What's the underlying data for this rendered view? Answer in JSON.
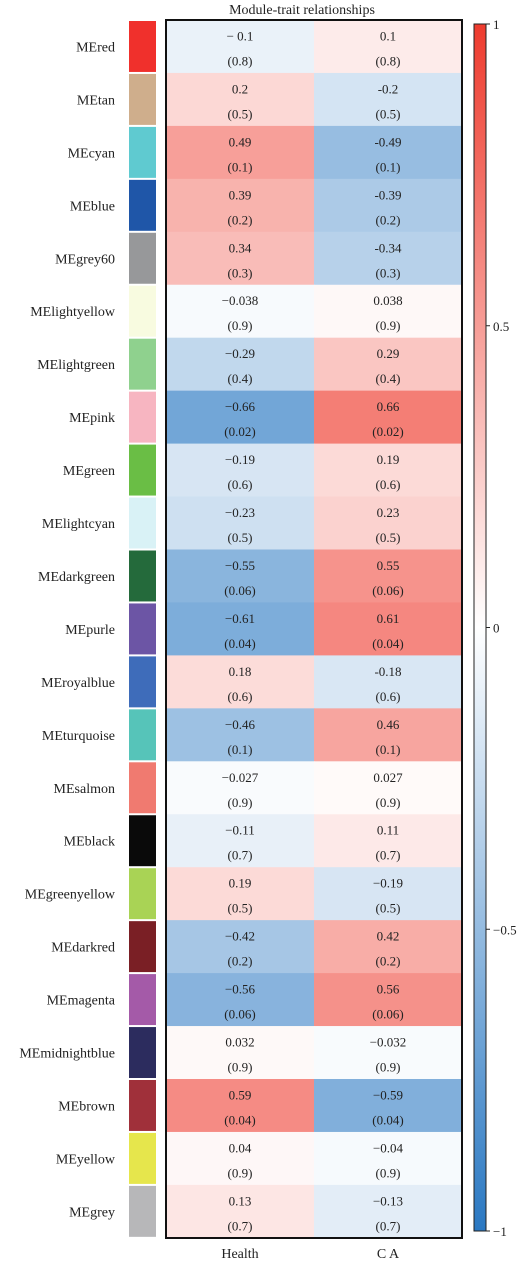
{
  "chart_data": {
    "type": "heatmap",
    "title": "Module-trait relationships",
    "columns": [
      "Health",
      "C A"
    ],
    "rows": [
      {
        "name": "MEred",
        "color": "#f0302c",
        "values": [
          "− 0.1",
          "0.1"
        ],
        "pvalues": [
          "(0.8)",
          "(0.8)"
        ],
        "corr": [
          -0.1,
          0.1
        ]
      },
      {
        "name": "MEtan",
        "color": "#cfae8c",
        "values": [
          "0.2",
          "-0.2"
        ],
        "pvalues": [
          "(0.5)",
          "(0.5)"
        ],
        "corr": [
          0.2,
          -0.2
        ]
      },
      {
        "name": "MEcyan",
        "color": "#5fcad0",
        "values": [
          "0.49",
          "-0.49"
        ],
        "pvalues": [
          "(0.1)",
          "(0.1)"
        ],
        "corr": [
          0.49,
          -0.49
        ]
      },
      {
        "name": "MEblue",
        "color": "#1f56a8",
        "values": [
          "0.39",
          "-0.39"
        ],
        "pvalues": [
          "(0.2)",
          "(0.2)"
        ],
        "corr": [
          0.39,
          -0.39
        ]
      },
      {
        "name": "MEgrey60",
        "color": "#97989a",
        "values": [
          "0.34",
          "-0.34"
        ],
        "pvalues": [
          "(0.3)",
          "(0.3)"
        ],
        "corr": [
          0.34,
          -0.34
        ]
      },
      {
        "name": "MElightyellow",
        "color": "#f8fbe0",
        "values": [
          "−0.038",
          "0.038"
        ],
        "pvalues": [
          "(0.9)",
          "(0.9)"
        ],
        "corr": [
          -0.038,
          0.038
        ]
      },
      {
        "name": "MElightgreen",
        "color": "#8fd18e",
        "values": [
          "−0.29",
          "0.29"
        ],
        "pvalues": [
          "(0.4)",
          "(0.4)"
        ],
        "corr": [
          -0.29,
          0.29
        ]
      },
      {
        "name": "MEpink",
        "color": "#f7b5c1",
        "values": [
          "−0.66",
          "0.66"
        ],
        "pvalues": [
          "(0.02)",
          "(0.02)"
        ],
        "corr": [
          -0.66,
          0.66
        ]
      },
      {
        "name": "MEgreen",
        "color": "#6abe45",
        "values": [
          "−0.19",
          "0.19"
        ],
        "pvalues": [
          "(0.6)",
          "(0.6)"
        ],
        "corr": [
          -0.19,
          0.19
        ]
      },
      {
        "name": "MElightcyan",
        "color": "#d9f2f6",
        "values": [
          "−0.23",
          "0.23"
        ],
        "pvalues": [
          "(0.5)",
          "(0.5)"
        ],
        "corr": [
          -0.23,
          0.23
        ]
      },
      {
        "name": "MEdarkgreen",
        "color": "#246a3b",
        "values": [
          "−0.55",
          "0.55"
        ],
        "pvalues": [
          "(0.06)",
          "(0.06)"
        ],
        "corr": [
          -0.55,
          0.55
        ]
      },
      {
        "name": "MEpurle",
        "color": "#6c55a5",
        "values": [
          "−0.61",
          "0.61"
        ],
        "pvalues": [
          "(0.04)",
          "(0.04)"
        ],
        "corr": [
          -0.61,
          0.61
        ]
      },
      {
        "name": "MEroyalblue",
        "color": "#3e6cba",
        "values": [
          "0.18",
          "-0.18"
        ],
        "pvalues": [
          "(0.6)",
          "(0.6)"
        ],
        "corr": [
          0.18,
          -0.18
        ]
      },
      {
        "name": "MEturquoise",
        "color": "#56c4b9",
        "values": [
          "−0.46",
          "0.46"
        ],
        "pvalues": [
          "(0.1)",
          "(0.1)"
        ],
        "corr": [
          -0.46,
          0.46
        ]
      },
      {
        "name": "MEsalmon",
        "color": "#f07a70",
        "values": [
          "−0.027",
          "0.027"
        ],
        "pvalues": [
          "(0.9)",
          "(0.9)"
        ],
        "corr": [
          -0.027,
          0.027
        ]
      },
      {
        "name": "MEblack",
        "color": "#0a0a0a",
        "values": [
          "−0.11",
          "0.11"
        ],
        "pvalues": [
          "(0.7)",
          "(0.7)"
        ],
        "corr": [
          -0.11,
          0.11
        ]
      },
      {
        "name": "MEgreenyellow",
        "color": "#a9d355",
        "values": [
          "0.19",
          "−0.19"
        ],
        "pvalues": [
          "(0.5)",
          "(0.5)"
        ],
        "corr": [
          0.19,
          -0.19
        ]
      },
      {
        "name": "MEdarkred",
        "color": "#7a1f25",
        "values": [
          "−0.42",
          "0.42"
        ],
        "pvalues": [
          "(0.2)",
          "(0.2)"
        ],
        "corr": [
          -0.42,
          0.42
        ]
      },
      {
        "name": "MEmagenta",
        "color": "#a45aa8",
        "values": [
          "−0.56",
          "0.56"
        ],
        "pvalues": [
          "(0.06)",
          "(0.06)"
        ],
        "corr": [
          -0.56,
          0.56
        ]
      },
      {
        "name": "MEmidnightblue",
        "color": "#2c2c5e",
        "values": [
          "0.032",
          "−0.032"
        ],
        "pvalues": [
          "(0.9)",
          "(0.9)"
        ],
        "corr": [
          0.032,
          -0.032
        ]
      },
      {
        "name": "MEbrown",
        "color": "#a0303a",
        "values": [
          "0.59",
          "−0.59"
        ],
        "pvalues": [
          "(0.04)",
          "(0.04)"
        ],
        "corr": [
          0.59,
          -0.59
        ]
      },
      {
        "name": "MEyellow",
        "color": "#e6e64c",
        "values": [
          "0.04",
          "−0.04"
        ],
        "pvalues": [
          "(0.9)",
          "(0.9)"
        ],
        "corr": [
          0.04,
          -0.04
        ]
      },
      {
        "name": "MEgrey",
        "color": "#b7b7b9",
        "values": [
          "0.13",
          "−0.13"
        ],
        "pvalues": [
          "(0.7)",
          "(0.7)"
        ],
        "corr": [
          0.13,
          -0.13
        ]
      }
    ],
    "colorbar": {
      "range": [
        -1,
        1
      ],
      "ticks": [
        1,
        0.5,
        0,
        -0.5,
        -1
      ],
      "tick_labels": [
        "1",
        "0.5",
        "0",
        "−0.5",
        "−1"
      ],
      "low_color": "#2a78c2",
      "mid_color": "#ffffff",
      "high_color": "#ee3b2e"
    }
  }
}
